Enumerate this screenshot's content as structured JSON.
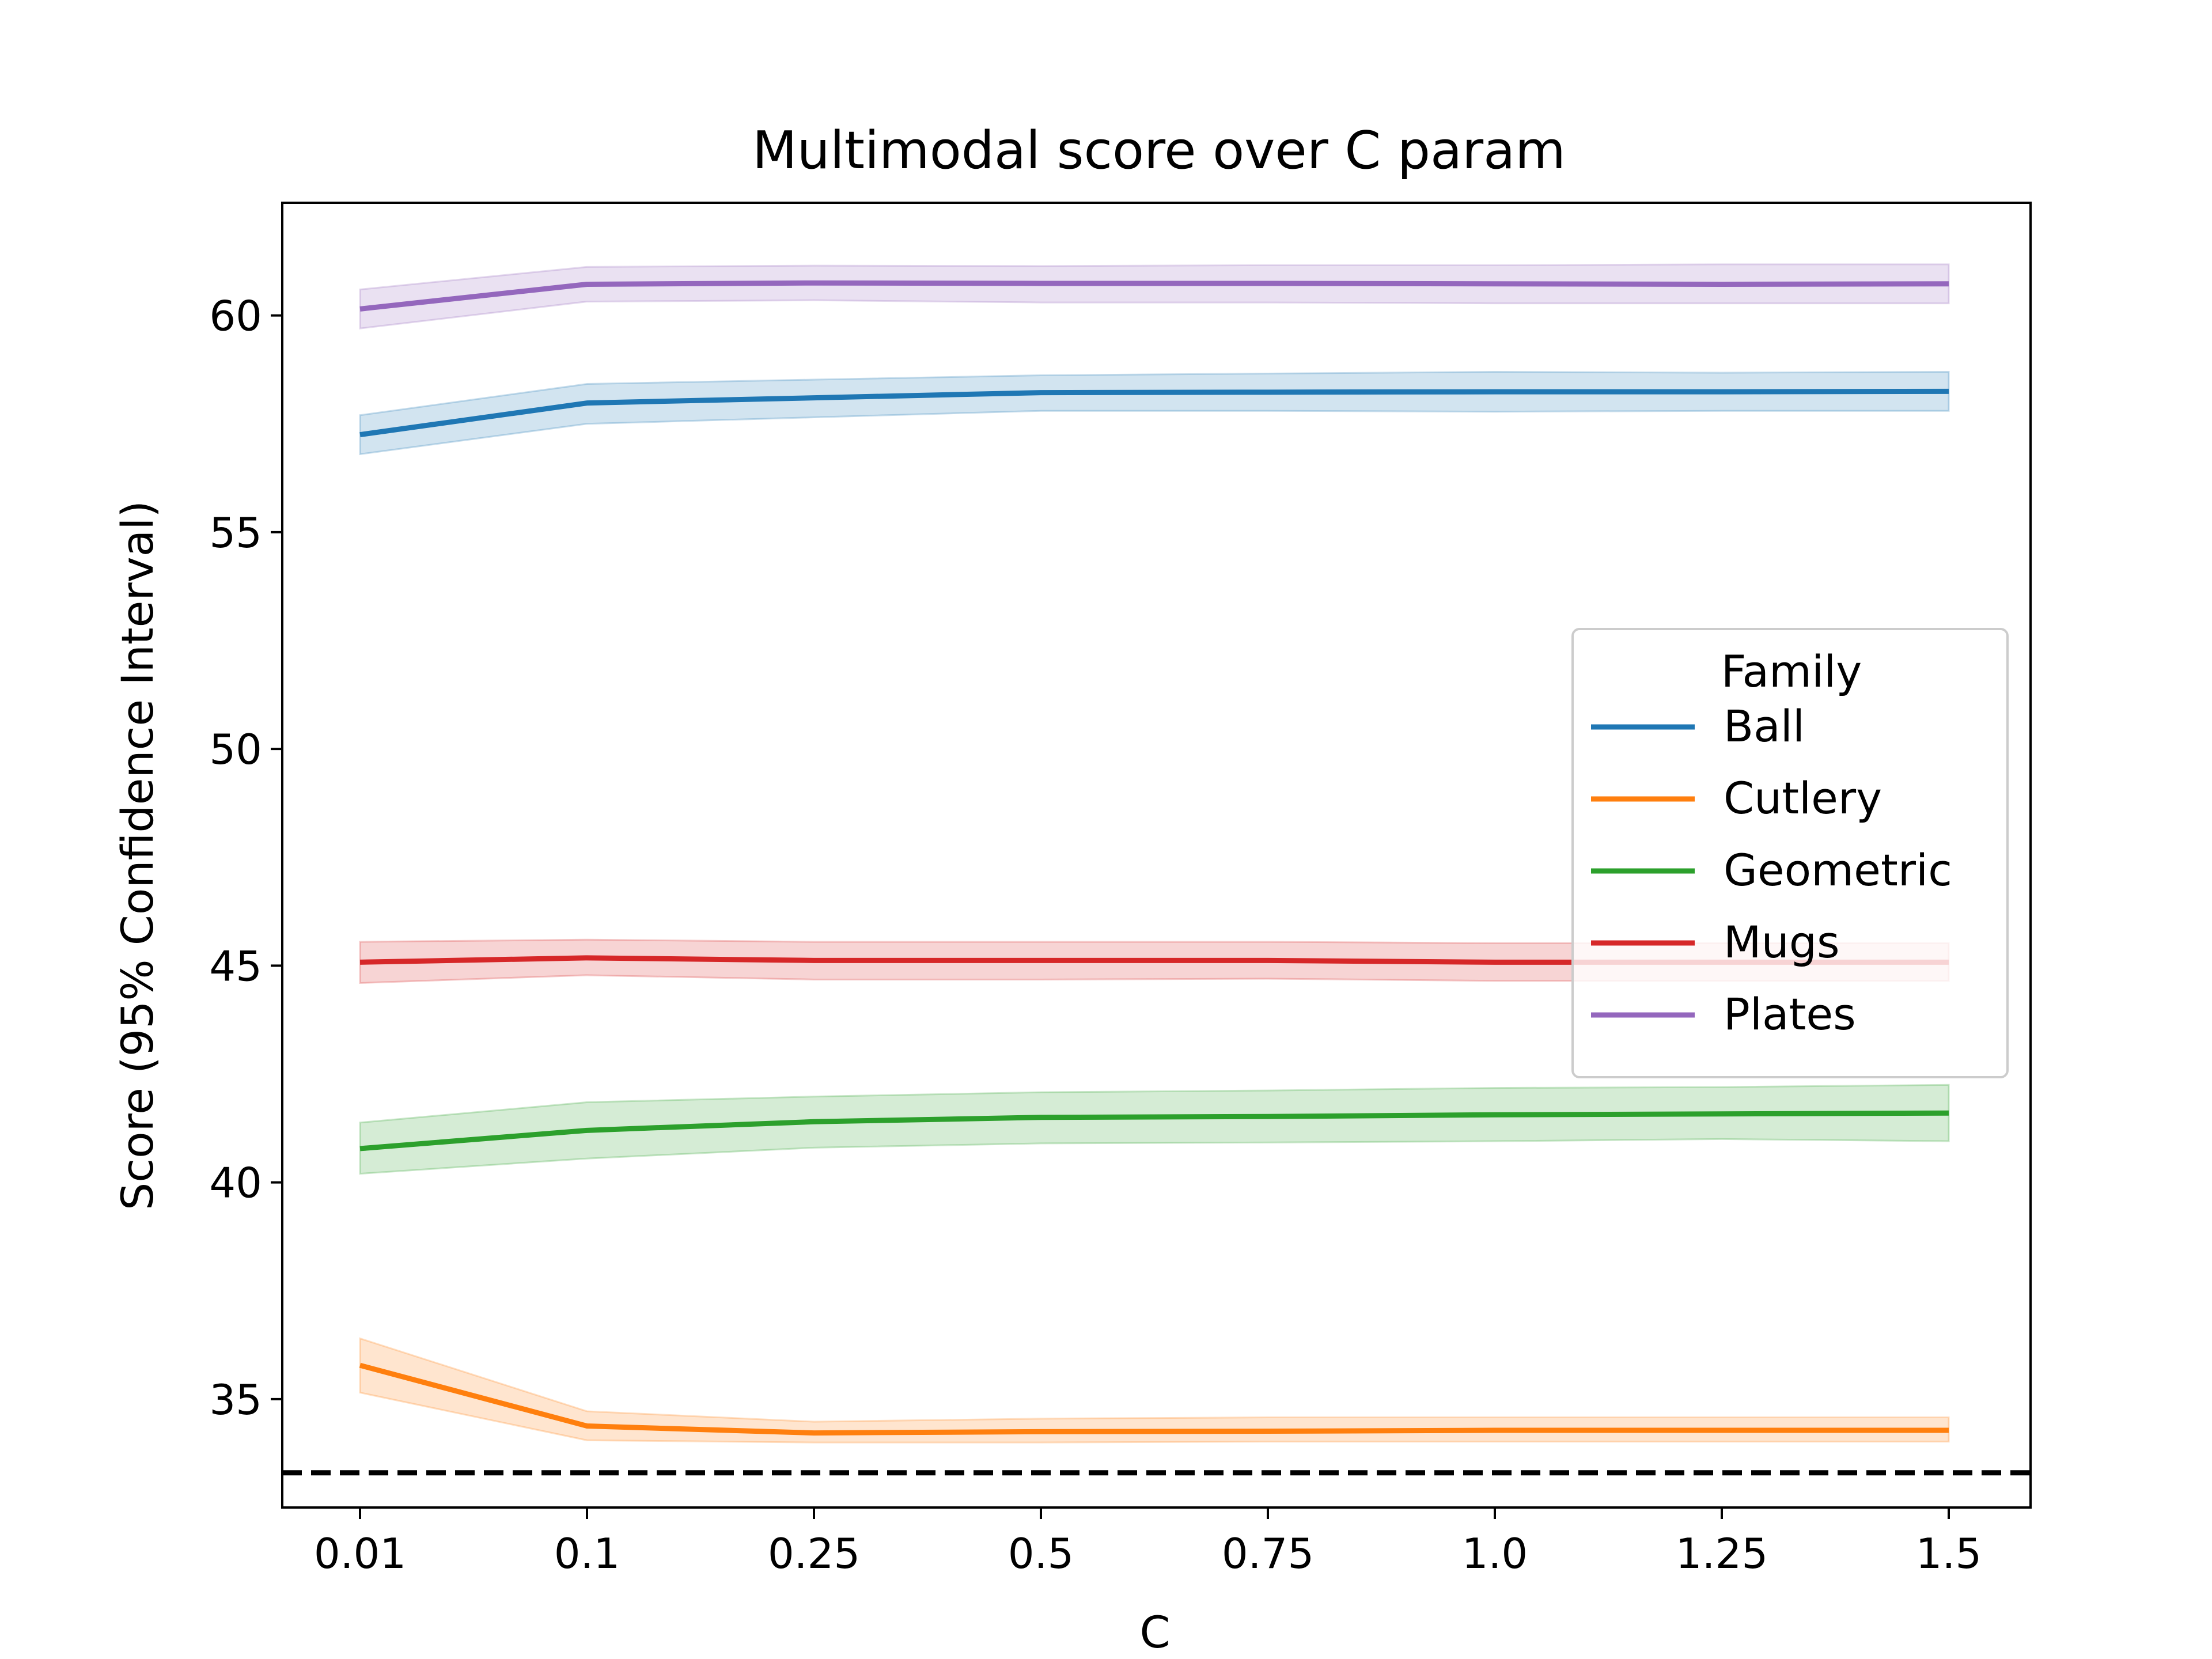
{
  "chart_data": {
    "type": "line",
    "title": "Multimodal score over C param",
    "xlabel": "C",
    "ylabel": "Score (95% Confidence Interval)",
    "categories": [
      "0.01",
      "0.1",
      "0.25",
      "0.5",
      "0.75",
      "1.0",
      "1.25",
      "1.5"
    ],
    "ylim": [
      32.5,
      62.6
    ],
    "yticks": [
      "35",
      "40",
      "45",
      "50",
      "55",
      "60"
    ],
    "grid": false,
    "reference_line": {
      "y": 33.3,
      "style": "dashed",
      "color": "#000000"
    },
    "legend": {
      "title": "Family",
      "placement": "center-right"
    },
    "series": [
      {
        "name": "Ball",
        "color": "#1f77b4",
        "values": [
          57.25,
          57.98,
          58.1,
          58.22,
          58.23,
          58.24,
          58.24,
          58.25
        ],
        "lower": [
          56.8,
          57.5,
          57.65,
          57.8,
          57.8,
          57.78,
          57.8,
          57.8
        ],
        "upper": [
          57.7,
          58.42,
          58.52,
          58.62,
          58.66,
          58.7,
          58.68,
          58.7
        ]
      },
      {
        "name": "Cutlery",
        "color": "#ff7f0e",
        "values": [
          35.78,
          34.38,
          34.22,
          34.25,
          34.26,
          34.28,
          34.28,
          34.28
        ],
        "lower": [
          35.15,
          34.05,
          34.0,
          34.0,
          34.02,
          34.02,
          34.02,
          34.02
        ],
        "upper": [
          36.4,
          34.72,
          34.48,
          34.55,
          34.58,
          34.58,
          34.58,
          34.58
        ]
      },
      {
        "name": "Geometric",
        "color": "#2ca02c",
        "values": [
          40.78,
          41.2,
          41.4,
          41.5,
          41.52,
          41.56,
          41.58,
          41.6
        ],
        "lower": [
          40.2,
          40.55,
          40.8,
          40.9,
          40.92,
          40.95,
          41.0,
          40.95
        ],
        "upper": [
          41.38,
          41.85,
          41.98,
          42.08,
          42.12,
          42.18,
          42.2,
          42.25
        ]
      },
      {
        "name": "Mugs",
        "color": "#d62728",
        "values": [
          45.08,
          45.18,
          45.12,
          45.12,
          45.12,
          45.08,
          45.08,
          45.08
        ],
        "lower": [
          44.6,
          44.78,
          44.68,
          44.68,
          44.7,
          44.65,
          44.65,
          44.65
        ],
        "upper": [
          45.55,
          45.6,
          45.55,
          45.55,
          45.55,
          45.52,
          45.52,
          45.52
        ]
      },
      {
        "name": "Plates",
        "color": "#9467bd",
        "values": [
          60.15,
          60.72,
          60.75,
          60.74,
          60.74,
          60.73,
          60.72,
          60.73
        ],
        "lower": [
          59.7,
          60.32,
          60.35,
          60.3,
          60.3,
          60.28,
          60.28,
          60.28
        ],
        "upper": [
          60.6,
          61.12,
          61.15,
          61.14,
          61.16,
          61.16,
          61.18,
          61.18
        ]
      }
    ]
  }
}
